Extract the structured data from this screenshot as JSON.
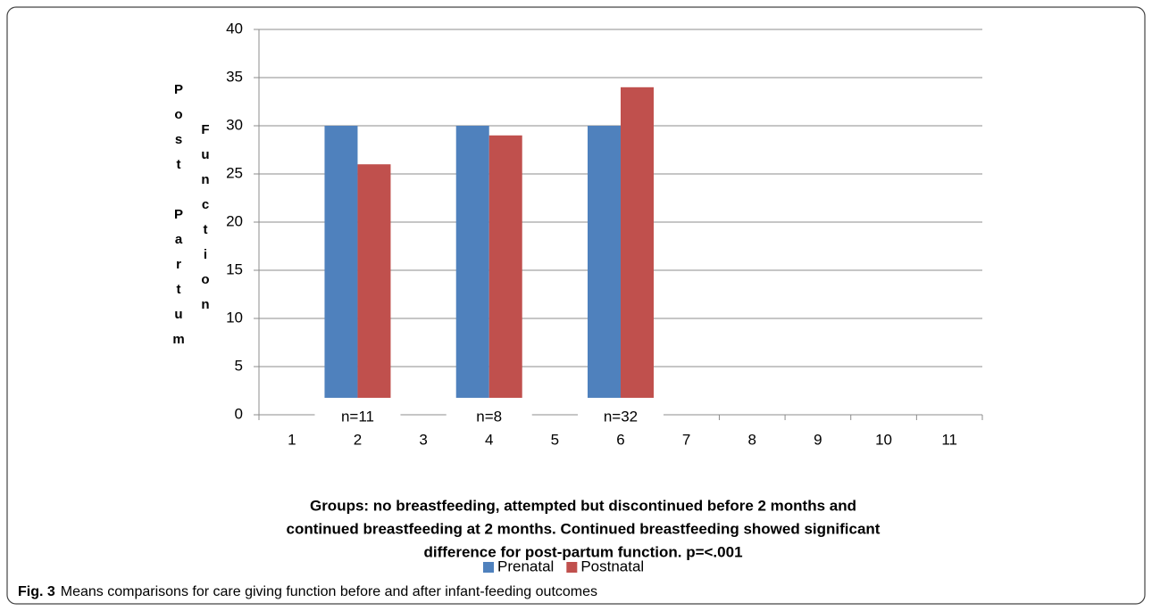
{
  "chart_data": {
    "type": "bar",
    "categories": [
      "1",
      "2",
      "3",
      "4",
      "5",
      "6",
      "7",
      "8",
      "9",
      "10",
      "11"
    ],
    "series": [
      {
        "name": "Prenatal",
        "color": "#4f81bd",
        "values": [
          null,
          30,
          null,
          30,
          null,
          30,
          null,
          null,
          null,
          null,
          null
        ]
      },
      {
        "name": "Postnatal",
        "color": "#c0504d",
        "values": [
          null,
          26,
          null,
          29,
          null,
          34,
          null,
          null,
          null,
          null,
          null
        ]
      }
    ],
    "group_labels": [
      null,
      "n=11",
      null,
      "n=8",
      null,
      "n=32",
      null,
      null,
      null,
      null,
      null
    ],
    "ylim": [
      0,
      40
    ],
    "yticks": [
      0,
      5,
      10,
      15,
      20,
      25,
      30,
      35,
      40
    ],
    "grid": true,
    "y_label_lines": [
      "Post Partum",
      "Function"
    ],
    "x_label_lines": [
      "Groups: no breastfeeding, attempted  but discontinued before 2 months and",
      "continued breastfeeding at 2 months.  Continued breastfeeding showed significant",
      "difference for post-partum function.  p=<.001"
    ],
    "legend": "bottom"
  },
  "caption": {
    "label": "Fig. 3",
    "text": "Means comparisons for care giving function before and after infant-feeding outcomes"
  }
}
